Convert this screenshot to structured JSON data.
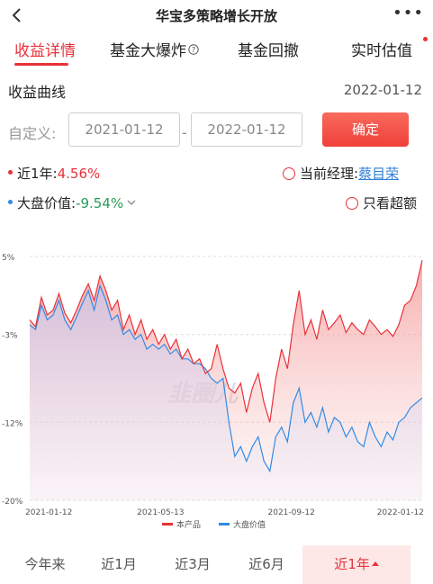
{
  "header": {
    "title": "华宝多策略增长开放",
    "back_icon": "chevron-left-icon",
    "more_icon": "more-dots-icon"
  },
  "tabs": [
    {
      "label": "收益详情",
      "active": true
    },
    {
      "label": "基金大爆炸",
      "icon": "info-circle-icon"
    },
    {
      "label": "基金回撤"
    },
    {
      "label": "实时估值",
      "badge_dot": true
    }
  ],
  "section": {
    "title": "收益曲线",
    "date": "2022-01-12"
  },
  "custom_range": {
    "label": "自定义:",
    "start": "2021-01-12",
    "end": "2022-01-12",
    "separator": "-",
    "confirm_label": "确定"
  },
  "stats": {
    "fund_return_label": "近1年:",
    "fund_return_value": "4.56%",
    "manager_label": "当前经理:",
    "manager_name": "蔡目荣",
    "benchmark_label": "大盘价值:",
    "benchmark_value": "-9.54%",
    "excess_label": "只看超额"
  },
  "colors": {
    "accent": "#e8323a",
    "fund_line": "#e8323a",
    "benchmark_line": "#2f8be6",
    "positive": "#e8323a",
    "negative": "#2a9b59"
  },
  "chart_data": {
    "type": "line",
    "ylim": [
      -20,
      5
    ],
    "yticks": [
      "5%",
      "-3%",
      "-12%",
      "-20%"
    ],
    "ytick_values": [
      5,
      -3,
      -12,
      -20
    ],
    "xticks": [
      "2021-01-12",
      "2021-05-13",
      "2021-09-12",
      "2022-01-12"
    ],
    "watermark": "韭圈儿",
    "series": [
      {
        "name": "本产品",
        "values": [
          -1.5,
          -2.2,
          0.8,
          -1.0,
          -0.5,
          1.2,
          -0.8,
          -1.8,
          -0.5,
          1.0,
          2.2,
          0.5,
          3.0,
          1.5,
          -0.5,
          0.5,
          -2.5,
          -1.0,
          -3.0,
          -1.5,
          -3.5,
          -2.5,
          -4.0,
          -3.0,
          -4.5,
          -3.5,
          -5.5,
          -4.5,
          -6.0,
          -5.5,
          -7.0,
          -6.5,
          -4.0,
          -6.5,
          -8.5,
          -9.0,
          -8.0,
          -11.0,
          -8.5,
          -7.0,
          -10.0,
          -12.0,
          -7.5,
          -4.5,
          -6.5,
          -2.0,
          1.5,
          -3.0,
          -1.5,
          -3.5,
          -0.5,
          -2.5,
          -1.8,
          -1.0,
          -2.8,
          -1.8,
          -2.5,
          -3.0,
          -1.5,
          -2.2,
          -3.0,
          -2.5,
          -3.2,
          -2.0,
          0.0,
          0.5,
          2.0,
          4.6
        ],
        "color": "#e8323a"
      },
      {
        "name": "大盘价值",
        "values": [
          -2.0,
          -2.5,
          0.0,
          -1.5,
          -1.0,
          0.5,
          -1.5,
          -2.5,
          -1.2,
          0.2,
          1.5,
          -0.5,
          2.0,
          0.5,
          -1.5,
          -1.0,
          -3.0,
          -2.5,
          -3.5,
          -3.0,
          -4.5,
          -4.0,
          -4.5,
          -4.0,
          -5.0,
          -4.5,
          -5.5,
          -5.5,
          -6.0,
          -6.0,
          -6.5,
          -7.5,
          -8.0,
          -7.5,
          -12.0,
          -15.5,
          -14.5,
          -16.0,
          -14.5,
          -13.5,
          -16.0,
          -17.0,
          -13.5,
          -12.5,
          -14.0,
          -10.0,
          -8.5,
          -12.0,
          -11.0,
          -12.5,
          -10.5,
          -13.0,
          -11.5,
          -12.0,
          -13.5,
          -12.5,
          -14.0,
          -14.5,
          -12.0,
          -13.5,
          -14.5,
          -13.0,
          -13.8,
          -12.0,
          -11.5,
          -10.5,
          -10.0,
          -9.5
        ],
        "color": "#2f8be6"
      }
    ]
  },
  "periods": [
    {
      "label": "今年来"
    },
    {
      "label": "近1月"
    },
    {
      "label": "近3月"
    },
    {
      "label": "近6月"
    },
    {
      "label": "近1年",
      "active": true
    }
  ]
}
